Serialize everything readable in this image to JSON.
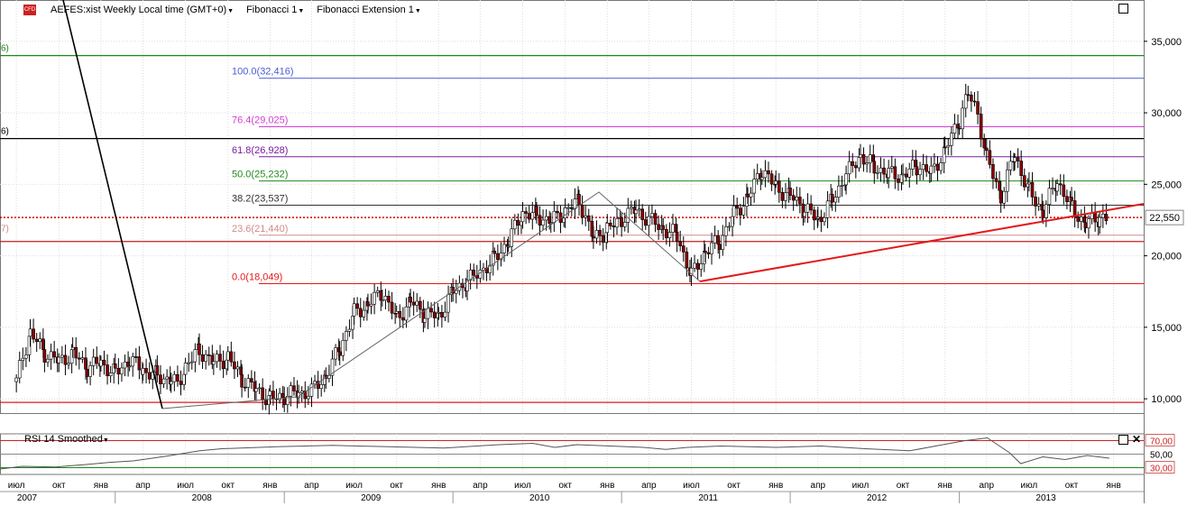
{
  "header": {
    "symbol": "AEFES:xist",
    "period": "Weekly",
    "timezone": "Local time (GMT+0)",
    "study1": "Fibonacci 1",
    "study2": "Fibonacci Extension 1",
    "badge": "CFD"
  },
  "price_axis": {
    "ticks": [
      "35,000",
      "30,000",
      "25,000",
      "20,000",
      "15,000",
      "10,000"
    ],
    "current_price": "22,550"
  },
  "left_edge_labels": [
    "6)",
    "6)",
    "7)"
  ],
  "fibonacci": [
    {
      "label": "100.0(32,416)",
      "value": 32416,
      "color": "#4a5bd6"
    },
    {
      "label": "76.4(29,025)",
      "value": 29025,
      "color": "#d13fd1"
    },
    {
      "label": "61.8(26,928)",
      "value": 26928,
      "color": "#7a1a9e"
    },
    {
      "label": "50.0(25,232)",
      "value": 25232,
      "color": "#1f8a1f"
    },
    {
      "label": "38.2(23,537)",
      "value": 23537,
      "color": "#333333"
    },
    {
      "label": "23.6(21,440)",
      "value": 21440,
      "color": "#d28a8a"
    },
    {
      "label": "0.0(18,049)",
      "value": 18049,
      "color": "#e21a1a"
    }
  ],
  "horizontal_lines": [
    {
      "value": 34000,
      "color": "#1a8a1a"
    },
    {
      "value": 28200,
      "color": "#000000"
    },
    {
      "value": 21000,
      "color": "#c02020"
    },
    {
      "value": 9750,
      "color": "#e21a1a"
    }
  ],
  "rsi": {
    "title": "RSI 14 Smoothed",
    "levels": [
      "70,00",
      "50,00",
      "30,00"
    ],
    "level_values": [
      70,
      50,
      30
    ]
  },
  "time_axis": {
    "months": [
      "июл",
      "окт",
      "янв",
      "апр",
      "июл",
      "окт",
      "янв",
      "апр",
      "июл",
      "окт",
      "янв",
      "апр",
      "июл",
      "окт",
      "янв",
      "апр",
      "июл",
      "окт",
      "янв",
      "апр",
      "июл",
      "окт",
      "янв",
      "апр",
      "июл",
      "окт",
      "янв",
      "апр",
      "июл",
      "окт"
    ],
    "years": [
      "2007",
      "2008",
      "2009",
      "2010",
      "2011",
      "2012",
      "2013"
    ]
  },
  "chart_data": {
    "type": "candlestick",
    "interval": "weekly",
    "x_range": [
      "2007-06",
      "2013-12"
    ],
    "ylim": [
      9000,
      36500
    ],
    "series": [
      {
        "kind": "weekly_close_approx",
        "points": [
          [
            "2007-06-01",
            11200
          ],
          [
            "2007-06-15",
            13000
          ],
          [
            "2007-07-01",
            14600
          ],
          [
            "2007-07-15",
            14000
          ],
          [
            "2007-08-01",
            13200
          ],
          [
            "2007-09-01",
            12600
          ],
          [
            "2007-10-01",
            13200
          ],
          [
            "2007-11-01",
            12200
          ],
          [
            "2007-12-01",
            12500
          ],
          [
            "2008-01-01",
            11800
          ],
          [
            "2008-02-01",
            12700
          ],
          [
            "2008-03-01",
            12000
          ],
          [
            "2008-04-01",
            11600
          ],
          [
            "2008-05-01",
            11300
          ],
          [
            "2008-05-15",
            10900
          ],
          [
            "2008-06-01",
            12300
          ],
          [
            "2008-07-01",
            13400
          ],
          [
            "2008-08-01",
            12500
          ],
          [
            "2008-09-01",
            12900
          ],
          [
            "2008-10-01",
            11400
          ],
          [
            "2008-11-01",
            10600
          ],
          [
            "2008-12-01",
            10000
          ],
          [
            "2009-01-01",
            10200
          ],
          [
            "2009-02-01",
            10400
          ],
          [
            "2009-03-01",
            10500
          ],
          [
            "2009-04-01",
            11600
          ],
          [
            "2009-05-01",
            13500
          ],
          [
            "2009-06-01",
            16000
          ],
          [
            "2009-07-01",
            16600
          ],
          [
            "2009-08-01",
            17400
          ],
          [
            "2009-09-01",
            15600
          ],
          [
            "2009-10-01",
            16800
          ],
          [
            "2009-11-01",
            15900
          ],
          [
            "2009-12-01",
            15800
          ],
          [
            "2010-01-01",
            17500
          ],
          [
            "2010-02-01",
            18200
          ],
          [
            "2010-03-01",
            18900
          ],
          [
            "2010-04-01",
            19800
          ],
          [
            "2010-05-01",
            21000
          ],
          [
            "2010-06-01",
            23000
          ],
          [
            "2010-07-01",
            22800
          ],
          [
            "2010-08-01",
            22400
          ],
          [
            "2010-09-01",
            23100
          ],
          [
            "2010-10-01",
            23900
          ],
          [
            "2010-11-01",
            21200
          ],
          [
            "2010-12-01",
            21800
          ],
          [
            "2011-01-01",
            22600
          ],
          [
            "2011-02-01",
            23200
          ],
          [
            "2011-03-01",
            22500
          ],
          [
            "2011-04-01",
            21900
          ],
          [
            "2011-05-01",
            21400
          ],
          [
            "2011-06-01",
            18600
          ],
          [
            "2011-07-01",
            20300
          ],
          [
            "2011-08-01",
            21000
          ],
          [
            "2011-09-01",
            22900
          ],
          [
            "2011-10-01",
            24100
          ],
          [
            "2011-11-01",
            26000
          ],
          [
            "2011-12-01",
            24800
          ],
          [
            "2012-01-01",
            24200
          ],
          [
            "2012-02-01",
            23300
          ],
          [
            "2012-03-01",
            22500
          ],
          [
            "2012-04-01",
            23900
          ],
          [
            "2012-05-01",
            25600
          ],
          [
            "2012-06-01",
            27000
          ],
          [
            "2012-07-01",
            26200
          ],
          [
            "2012-08-01",
            25700
          ],
          [
            "2012-09-01",
            25600
          ],
          [
            "2012-10-01",
            26300
          ],
          [
            "2012-11-01",
            25800
          ],
          [
            "2012-12-01",
            27400
          ],
          [
            "2013-01-01",
            29500
          ],
          [
            "2013-01-20",
            31300
          ],
          [
            "2013-02-10",
            30000
          ],
          [
            "2013-03-01",
            26800
          ],
          [
            "2013-04-01",
            24200
          ],
          [
            "2013-05-01",
            27000
          ],
          [
            "2013-06-01",
            24500
          ],
          [
            "2013-07-01",
            23100
          ],
          [
            "2013-08-01",
            25200
          ],
          [
            "2013-09-01",
            23400
          ],
          [
            "2013-10-01",
            22200
          ],
          [
            "2013-11-01",
            22700
          ],
          [
            "2013-11-20",
            22550
          ]
        ]
      }
    ],
    "rsi_points": [
      [
        0,
        28
      ],
      [
        0.02,
        32
      ],
      [
        0.05,
        31
      ],
      [
        0.08,
        35
      ],
      [
        0.1,
        38
      ],
      [
        0.12,
        40
      ],
      [
        0.15,
        47
      ],
      [
        0.18,
        55
      ],
      [
        0.2,
        58
      ],
      [
        0.25,
        61
      ],
      [
        0.3,
        63
      ],
      [
        0.35,
        61
      ],
      [
        0.4,
        59
      ],
      [
        0.45,
        64
      ],
      [
        0.48,
        66
      ],
      [
        0.5,
        60
      ],
      [
        0.52,
        64
      ],
      [
        0.55,
        62
      ],
      [
        0.58,
        60
      ],
      [
        0.6,
        57
      ],
      [
        0.62,
        60
      ],
      [
        0.65,
        62
      ],
      [
        0.7,
        60
      ],
      [
        0.74,
        62
      ],
      [
        0.78,
        58
      ],
      [
        0.82,
        55
      ],
      [
        0.85,
        64
      ],
      [
        0.87,
        70
      ],
      [
        0.89,
        74
      ],
      [
        0.91,
        52
      ],
      [
        0.92,
        36
      ],
      [
        0.94,
        46
      ],
      [
        0.96,
        42
      ],
      [
        0.98,
        48
      ],
      [
        1.0,
        44
      ]
    ]
  }
}
